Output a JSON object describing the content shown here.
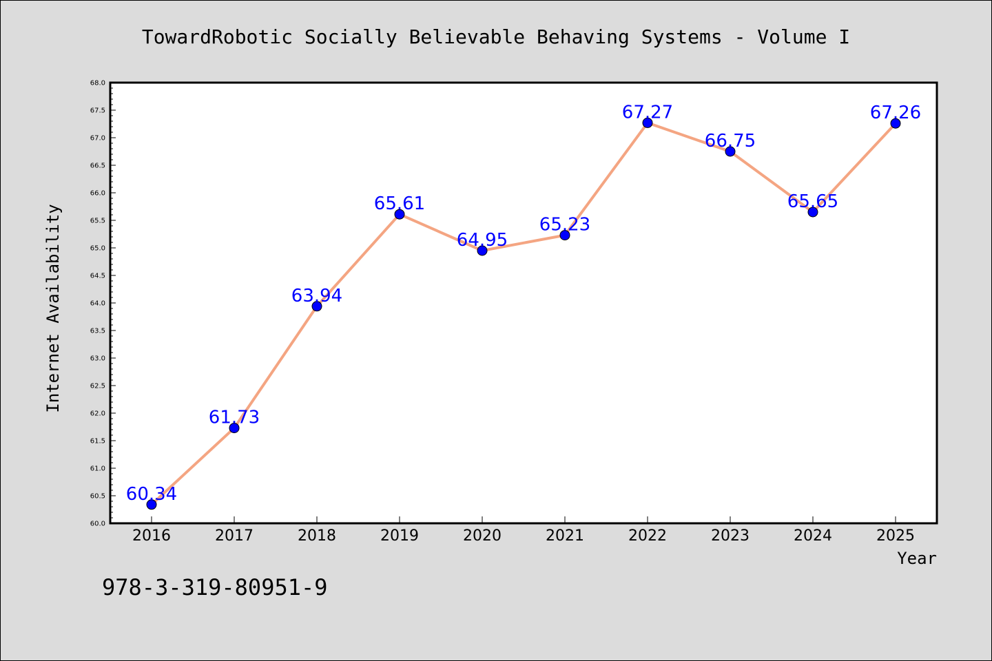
{
  "chart_data": {
    "type": "line",
    "title": "TowardRobotic Socially Believable Behaving Systems - Volume I",
    "xlabel": "Year",
    "ylabel": "Internet Availability",
    "categories": [
      "2016",
      "2017",
      "2018",
      "2019",
      "2020",
      "2021",
      "2022",
      "2023",
      "2024",
      "2025"
    ],
    "series": [
      {
        "values": [
          60.34,
          61.73,
          63.94,
          65.61,
          64.95,
          65.23,
          67.27,
          66.75,
          65.65,
          67.26
        ],
        "line_color": "#f4a582",
        "marker_color": "#0000ff"
      }
    ],
    "data_labels": [
      "60.34",
      "61.73",
      "63.94",
      "65.61",
      "64.95",
      "65.23",
      "67.27",
      "66.75",
      "65.65",
      "67.26"
    ],
    "ylim": [
      60.0,
      68.0
    ],
    "yticks": [
      "60.0",
      "60.5",
      "61.0",
      "61.5",
      "62.0",
      "62.5",
      "63.0",
      "63.5",
      "64.0",
      "64.5",
      "65.0",
      "65.5",
      "66.0",
      "66.5",
      "67.0",
      "67.5",
      "68.0"
    ],
    "grid": false,
    "legend": "none",
    "label_color": "#0000ff",
    "background": "#dcdcdc",
    "plot_background": "#ffffff"
  },
  "footer": {
    "isbn": "978-3-319-80951-9"
  }
}
